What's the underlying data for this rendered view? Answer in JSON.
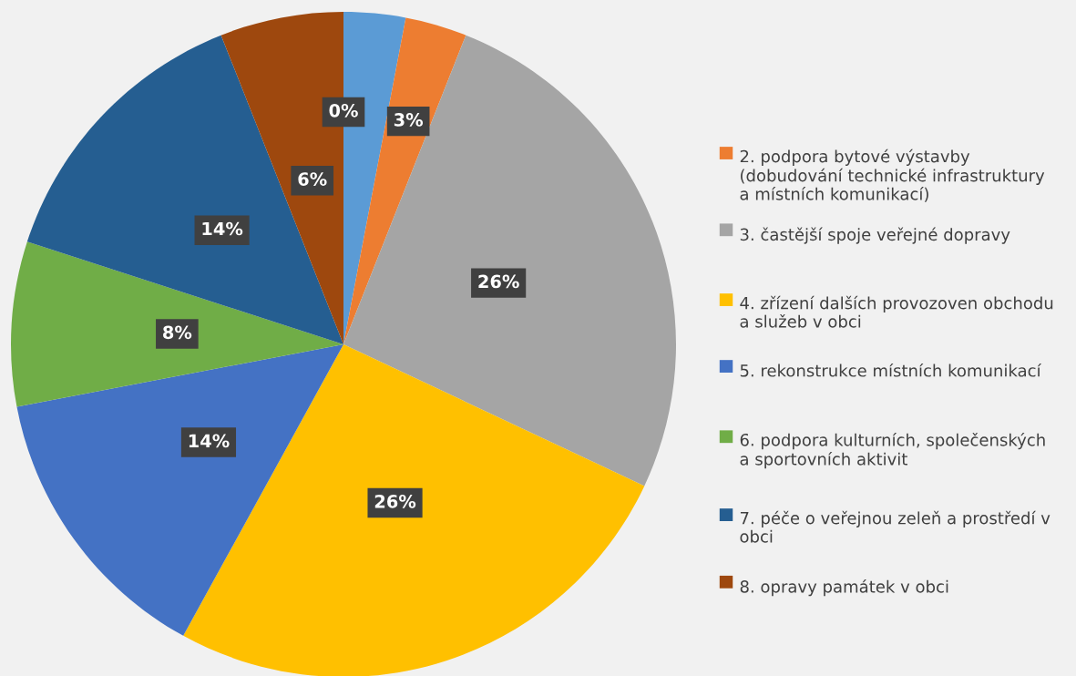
{
  "chart_data": {
    "type": "pie",
    "categories": [
      null,
      "2. podpora bytové výstavby\n(dobudování technické infrastruktury\na místních komunikací)",
      "3. častější spoje veřejné dopravy",
      "4. zřízení dalších provozoven obchodu\na služeb v obci",
      "5. rekonstrukce místních komunikací",
      "6. podpora kulturních, společenských\na sportovních aktivit",
      "7. péče o veřejnou zeleň a prostředí v\nobci",
      "8. opravy památek v obci",
      null
    ],
    "values": [
      3,
      3,
      26,
      26,
      14,
      8,
      14,
      6,
      0
    ],
    "colors": [
      "#5b9bd5",
      "#ed7d31",
      "#a5a5a5",
      "#ffc000",
      "#4472c4",
      "#70ad47",
      "#255e91",
      "#9e480e",
      "#636363"
    ],
    "value_labels": [
      null,
      "3%",
      "26%",
      "26%",
      "14%",
      "8%",
      "14%",
      "6%",
      "0%"
    ],
    "legend": "right"
  }
}
